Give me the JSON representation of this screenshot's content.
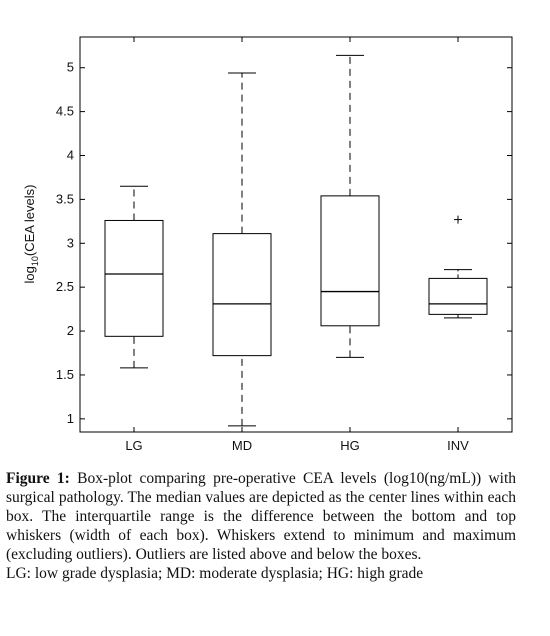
{
  "chart_data": {
    "type": "box",
    "ylabel": "log10(CEA levels)",
    "ylim": [
      0.85,
      5.35
    ],
    "yticks": [
      "1",
      "1.5",
      "2",
      "2.5",
      "3",
      "3.5",
      "4",
      "4.5",
      "5"
    ],
    "categories": [
      "LG",
      "MD",
      "HG",
      "INV"
    ],
    "boxes": [
      {
        "category": "LG",
        "min": 1.58,
        "q1": 1.94,
        "median": 2.65,
        "q3": 3.26,
        "max": 3.65,
        "outliers": []
      },
      {
        "category": "MD",
        "min": 0.92,
        "q1": 1.72,
        "median": 2.31,
        "q3": 3.11,
        "max": 4.94,
        "outliers": []
      },
      {
        "category": "HG",
        "min": 1.7,
        "q1": 2.06,
        "median": 2.45,
        "q3": 3.54,
        "max": 5.14,
        "outliers": []
      },
      {
        "category": "INV",
        "min": 2.15,
        "q1": 2.19,
        "median": 2.31,
        "q3": 2.6,
        "max": 2.7,
        "outliers": [
          3.27
        ]
      }
    ]
  },
  "caption": {
    "figure_label": "Figure 1:",
    "paragraph1": "Box-plot comparing pre-operative CEA levels (log10(ng/mL)) with surgical pathology. The median values are depicted as the center lines within each box. The interquartile range is the difference between the bottom and top whiskers (width of each box). Whiskers extend to minimum and maximum (excluding outliers). Outliers are listed above and below the boxes.",
    "paragraph2": "LG: low grade dysplasia; MD: moderate dysplasia; HG: high grade"
  }
}
